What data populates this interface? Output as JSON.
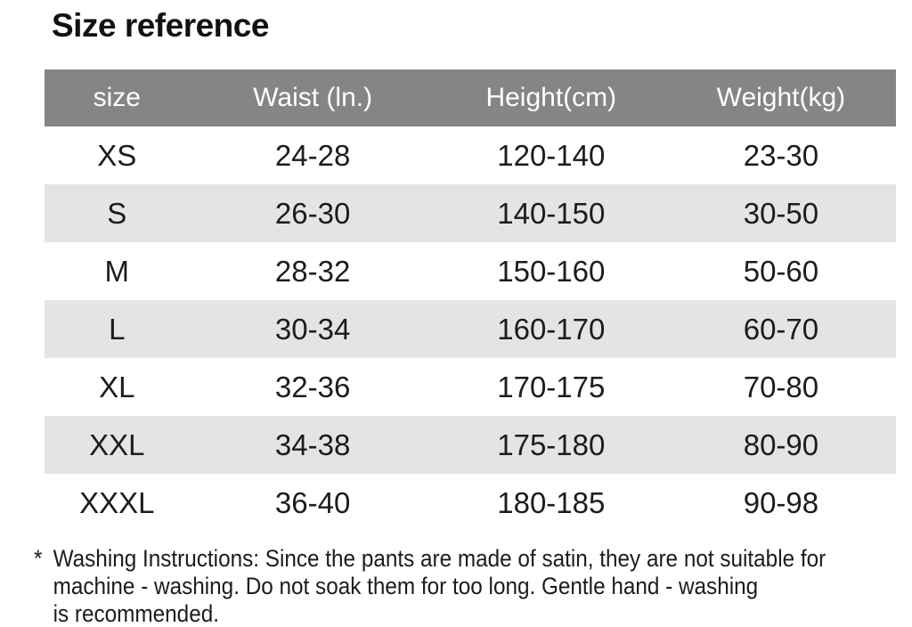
{
  "title": "Size reference",
  "colors": {
    "header_bg": "#858585",
    "header_text": "#ffffff",
    "stripe_bg": "#e4e4e4",
    "body_text": "#1c1c1c"
  },
  "table": {
    "columns": [
      {
        "key": "size",
        "label": "size"
      },
      {
        "key": "waist",
        "label": "Waist (ln.)"
      },
      {
        "key": "height",
        "label": "Height(cm)"
      },
      {
        "key": "weight",
        "label": "Weight(kg)"
      }
    ],
    "rows": [
      {
        "size": "XS",
        "waist": "24-28",
        "height": "120-140",
        "weight": "23-30"
      },
      {
        "size": "S",
        "waist": "26-30",
        "height": "140-150",
        "weight": "30-50"
      },
      {
        "size": "M",
        "waist": "28-32",
        "height": "150-160",
        "weight": "50-60"
      },
      {
        "size": "L",
        "waist": "30-34",
        "height": "160-170",
        "weight": "60-70"
      },
      {
        "size": "XL",
        "waist": "32-36",
        "height": "170-175",
        "weight": "70-80"
      },
      {
        "size": "XXL",
        "waist": "34-38",
        "height": "175-180",
        "weight": "80-90"
      },
      {
        "size": "XXXL",
        "waist": "36-40",
        "height": "180-185",
        "weight": "90-98"
      }
    ]
  },
  "footnote": {
    "marker": "*",
    "lines": [
      "Washing Instructions: Since the pants are made of satin, they are not suitable for",
      "machine - washing. Do not soak them for too long. Gentle hand - washing",
      "is recommended."
    ]
  }
}
